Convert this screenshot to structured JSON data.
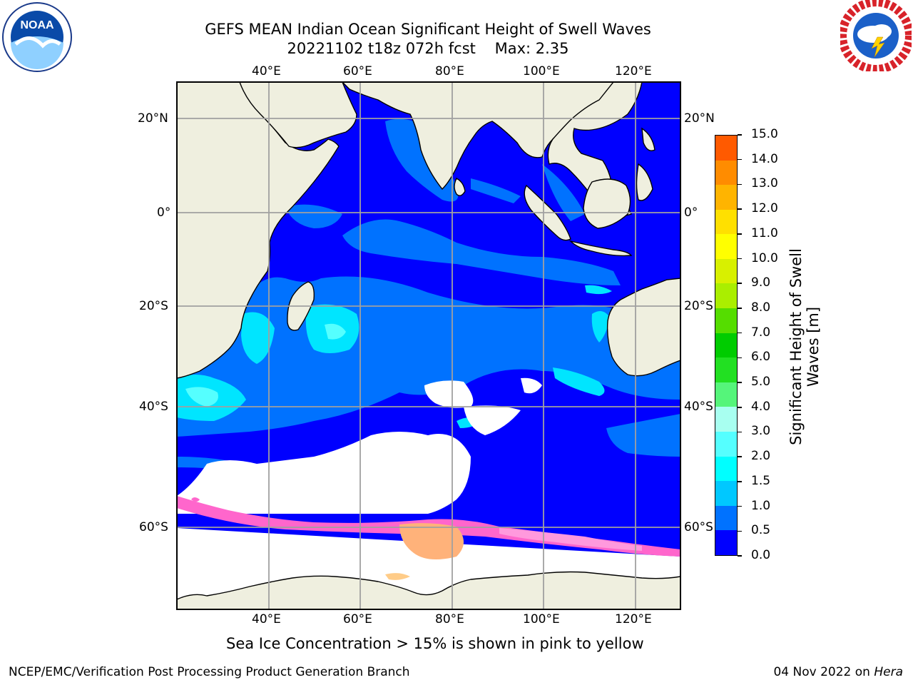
{
  "header": {
    "title_line1": "GEFS MEAN Indian Ocean Significant Height of Swell Waves",
    "title_line2": "20221102 t18z 072h fcst    Max: 2.35"
  },
  "logos": {
    "left": {
      "text": "NOAA",
      "icon": "noaa-logo"
    },
    "right": {
      "text": "NATIONAL WEATHER SERVICE",
      "icon": "nws-logo"
    }
  },
  "map": {
    "lon_labels": [
      "40°E",
      "60°E",
      "80°E",
      "100°E",
      "120°E"
    ],
    "lat_labels": [
      "20°N",
      "0°",
      "20°S",
      "40°S",
      "60°S"
    ],
    "colors": {
      "land": "#efefdf",
      "ice_free_open": "#ffffff",
      "swell_0": "#0000ff",
      "swell_05": "#0072ff",
      "swell_1": "#00e5ff",
      "swell_15": "#33ffff",
      "sea_ice_pink": "#ff66cc",
      "sea_ice_peach": "#ffb27a"
    }
  },
  "colorbar": {
    "title_line1": "Significant Height of Swell",
    "title_line2": "Waves [m]",
    "ticks": [
      "0.0",
      "0.5",
      "1.0",
      "1.5",
      "2.0",
      "3.0",
      "4.0",
      "5.0",
      "6.0",
      "7.0",
      "8.0",
      "9.0",
      "10.0",
      "11.0",
      "12.0",
      "13.0",
      "14.0",
      "15.0"
    ],
    "colors": [
      "#0000ff",
      "#0072ff",
      "#00c8ff",
      "#00ffff",
      "#55ffff",
      "#a8fff0",
      "#55f57a",
      "#22e022",
      "#00cc00",
      "#55dd00",
      "#aaee00",
      "#d8f000",
      "#ffff00",
      "#ffe000",
      "#ffb400",
      "#ff8c00",
      "#ff5a00",
      "#ff2800",
      "#ff0000"
    ]
  },
  "caption": "Sea Ice Concentration > 15% is shown in pink to yellow",
  "footer": {
    "left": "NCEP/EMC/Verification Post Processing Product Generation Branch",
    "right_prefix": "04 Nov 2022 on ",
    "right_host": "Hera"
  }
}
